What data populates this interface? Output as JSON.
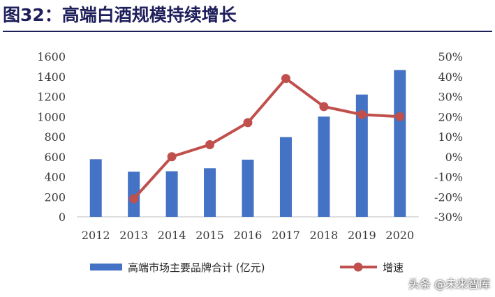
{
  "title": {
    "prefix": "图32：",
    "text": "高端白酒规模持续增长"
  },
  "colors": {
    "title_prefix": "#1f1f5c",
    "title_text": "#1f1f5c",
    "bar": "#4472C4",
    "line": "#C0504D",
    "rule": "#1f1f5c",
    "axis": "#bfbfbf"
  },
  "chart_data": {
    "type": "bar",
    "categories": [
      "2012",
      "2013",
      "2014",
      "2015",
      "2016",
      "2017",
      "2018",
      "2019",
      "2020"
    ],
    "series": [
      {
        "name": "高端市场主要品牌合计 (亿元)",
        "type": "bar",
        "axis": "left",
        "values": [
          575,
          450,
          455,
          485,
          570,
          795,
          1000,
          1220,
          1465
        ]
      },
      {
        "name": "增速",
        "type": "line",
        "axis": "right",
        "values": [
          null,
          -21,
          0,
          6,
          17,
          39,
          25,
          21,
          20
        ]
      }
    ],
    "y_left": {
      "range": [
        0,
        1600
      ],
      "ticks": [
        "0",
        "200",
        "400",
        "600",
        "800",
        "1000",
        "1200",
        "1400",
        "1600"
      ]
    },
    "y_right": {
      "range": [
        -30,
        50
      ],
      "ticks": [
        "-30%",
        "-20%",
        "-10%",
        "0%",
        "10%",
        "20%",
        "30%",
        "40%",
        "50%"
      ]
    },
    "grid": false,
    "legend": "bottom"
  },
  "watermark": "头条 @未来智库"
}
